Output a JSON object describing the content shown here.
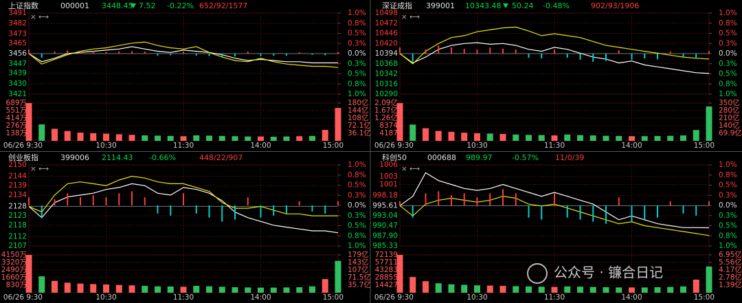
{
  "chart_data": [
    {
      "type": "line",
      "title": "上证指数",
      "code": "000001",
      "price": "3448.45",
      "change": "7.52",
      "change_pct": "-0.22%",
      "breadth": "652/92/1577",
      "x": [
        0,
        10,
        20,
        30,
        40,
        50,
        60,
        70,
        80,
        90,
        100,
        110,
        120,
        130,
        140,
        150,
        160,
        170,
        180,
        190,
        200,
        210,
        220,
        230,
        240
      ],
      "xlim": [
        0,
        240
      ],
      "xticks": [
        {
          "value": 0,
          "label": "06/26 9:30"
        },
        {
          "value": 60,
          "label": "10:30"
        },
        {
          "value": 120,
          "label": "11:30"
        },
        {
          "value": 180,
          "label": "14:00"
        },
        {
          "value": 240,
          "label": "15:00"
        }
      ],
      "ylim": [
        3421,
        3491
      ],
      "yticks": [
        3491,
        3482,
        3473,
        3465,
        3456,
        3447,
        3439,
        3430,
        3421
      ],
      "y2lim": [
        -1,
        1
      ],
      "y2ticks": [
        {
          "value": 1,
          "label": "1.0%"
        },
        {
          "value": 0.75,
          "label": "0.8%"
        },
        {
          "value": 0.5,
          "label": "0.5%"
        },
        {
          "value": 0.25,
          "label": "0.3%"
        },
        {
          "value": 0,
          "label": "0.0%"
        },
        {
          "value": -0.25,
          "label": "0.3%"
        },
        {
          "value": -0.5,
          "label": "0.5%"
        },
        {
          "value": -0.75,
          "label": "0.8%"
        },
        {
          "value": -1,
          "label": "1.0%"
        }
      ],
      "series": [
        {
          "color": "#ffffff",
          "values": [
            3456,
            3449,
            3452,
            3456,
            3457,
            3458,
            3459,
            3460,
            3462,
            3460,
            3458,
            3457,
            3459,
            3458,
            3457,
            3455,
            3452,
            3450,
            3451,
            3450,
            3449,
            3449,
            3448,
            3448,
            3448
          ]
        },
        {
          "color": "#e8e800",
          "values": [
            3456,
            3447,
            3451,
            3455,
            3458,
            3460,
            3461,
            3463,
            3465,
            3466,
            3463,
            3461,
            3460,
            3462,
            3457,
            3453,
            3450,
            3449,
            3452,
            3449,
            3447,
            3446,
            3445,
            3445,
            3444
          ]
        },
        {
          "axis": "y2",
          "type": "bar",
          "values": [
            0.1,
            -0.1,
            0.05,
            0.08,
            0.05,
            0.06,
            0.04,
            0.05,
            0.06,
            0.05,
            -0.05,
            -0.04,
            0.05,
            -0.05,
            -0.06,
            -0.08,
            -0.07,
            0.05,
            -0.06,
            -0.05,
            -0.05,
            0.03,
            -0.03,
            -0.04,
            0.04
          ]
        }
      ],
      "volume": {
        "ylim": [
          0,
          689
        ],
        "yticks": [
          {
            "value": 689,
            "label": "689万"
          },
          {
            "value": 551,
            "label": "551万"
          },
          {
            "value": 414,
            "label": "414万"
          },
          {
            "value": 276,
            "label": "276万"
          },
          {
            "value": 138,
            "label": "138万"
          }
        ],
        "y2lim": [
          0,
          180
        ],
        "y2ticks": [
          {
            "value": 180,
            "label": "180亿"
          },
          {
            "value": 144,
            "label": "144亿"
          },
          {
            "value": 108,
            "label": "108亿"
          },
          {
            "value": 72.1,
            "label": "72.1亿"
          },
          {
            "value": 36.1,
            "label": "36.1亿"
          }
        ],
        "values": [
          689,
          300,
          220,
          180,
          150,
          140,
          130,
          120,
          110,
          100,
          95,
          90,
          85,
          100,
          95,
          90,
          85,
          80,
          80,
          75,
          80,
          85,
          90,
          200,
          600
        ]
      }
    },
    {
      "type": "line",
      "title": "深证成指",
      "code": "399001",
      "price": "10343.48",
      "change": "50.24",
      "change_pct": "-0.48%",
      "breadth": "902/93/1906",
      "x": [
        0,
        10,
        20,
        30,
        40,
        50,
        60,
        70,
        80,
        90,
        100,
        110,
        120,
        130,
        140,
        150,
        160,
        170,
        180,
        190,
        200,
        210,
        220,
        230,
        240
      ],
      "xlim": [
        0,
        240
      ],
      "xticks": [
        {
          "value": 0,
          "label": "06/26 9:30"
        },
        {
          "value": 60,
          "label": "10:30"
        },
        {
          "value": 120,
          "label": "11:30"
        },
        {
          "value": 180,
          "label": "14:00"
        },
        {
          "value": 240,
          "label": "15:00"
        }
      ],
      "ylim": [
        10290,
        10498
      ],
      "yticks": [
        10498,
        10472,
        10446,
        10420,
        10394,
        10368,
        10342,
        10316,
        10290
      ],
      "y2lim": [
        -1,
        1
      ],
      "y2ticks": [
        {
          "value": 1,
          "label": "1.0%"
        },
        {
          "value": 0.75,
          "label": "0.8%"
        },
        {
          "value": 0.5,
          "label": "0.5%"
        },
        {
          "value": 0.25,
          "label": "0.3%"
        },
        {
          "value": 0,
          "label": "0.0%"
        },
        {
          "value": -0.25,
          "label": "0.3%"
        },
        {
          "value": -0.5,
          "label": "0.5%"
        },
        {
          "value": -0.75,
          "label": "0.8%"
        },
        {
          "value": -1,
          "label": "1.0%"
        }
      ],
      "series": [
        {
          "color": "#ffffff",
          "values": [
            10394,
            10370,
            10385,
            10405,
            10415,
            10420,
            10422,
            10418,
            10420,
            10415,
            10405,
            10400,
            10410,
            10405,
            10395,
            10385,
            10380,
            10370,
            10375,
            10365,
            10360,
            10355,
            10350,
            10345,
            10343
          ]
        },
        {
          "color": "#e8e800",
          "values": [
            10394,
            10368,
            10400,
            10420,
            10435,
            10440,
            10450,
            10455,
            10460,
            10462,
            10452,
            10440,
            10445,
            10440,
            10435,
            10425,
            10415,
            10410,
            10405,
            10400,
            10395,
            10390,
            10385,
            10382,
            10380
          ]
        },
        {
          "axis": "y2",
          "type": "bar",
          "values": [
            0.15,
            -0.2,
            0.1,
            0.2,
            0.15,
            0.12,
            0.1,
            0.15,
            0.12,
            0.1,
            -0.1,
            -0.12,
            0.1,
            -0.1,
            -0.15,
            -0.2,
            -0.18,
            0.08,
            -0.15,
            -0.12,
            -0.14,
            0.05,
            -0.1,
            -0.12,
            0.06
          ]
        }
      ],
      "volume": {
        "ylim": [
          0,
          20900
        ],
        "yticks": [
          {
            "value": 20900,
            "label": "2.09亿"
          },
          {
            "value": 16700,
            "label": "1.67亿"
          },
          {
            "value": 12600,
            "label": "1.26亿"
          },
          8374,
          4187
        ],
        "y2lim": [
          0,
          350
        ],
        "y2ticks": [
          {
            "value": 350,
            "label": "350亿"
          },
          {
            "value": 280,
            "label": "280亿"
          },
          {
            "value": 210,
            "label": "210亿"
          },
          {
            "value": 140,
            "label": "140亿"
          },
          {
            "value": 69.9,
            "label": "69.9亿"
          }
        ],
        "values": [
          20900,
          9000,
          7000,
          5500,
          5000,
          4500,
          4200,
          4000,
          3800,
          3500,
          3300,
          3200,
          3000,
          3500,
          3200,
          3000,
          2800,
          2700,
          2600,
          2600,
          2700,
          2800,
          3000,
          6000,
          19000
        ]
      }
    },
    {
      "type": "line",
      "title": "创业板指",
      "code": "399006",
      "price": "2114.43",
      "change_pct": "-0.66%",
      "breadth": "448/22/907",
      "x": [
        0,
        10,
        20,
        30,
        40,
        50,
        60,
        70,
        80,
        90,
        100,
        110,
        120,
        130,
        140,
        150,
        160,
        170,
        180,
        190,
        200,
        210,
        220,
        230,
        240
      ],
      "xlim": [
        0,
        240
      ],
      "xticks": [
        {
          "value": 0,
          "label": "06/26 9:30"
        },
        {
          "value": 60,
          "label": "10:30"
        },
        {
          "value": 120,
          "label": "11:30"
        },
        {
          "value": 180,
          "label": "14:00"
        },
        {
          "value": 240,
          "label": "15:00"
        }
      ],
      "ylim": [
        2107,
        2150
      ],
      "yticks": [
        2150,
        2144,
        2139,
        2134,
        2128,
        2123,
        2118,
        2112,
        2107
      ],
      "y2lim": [
        -1,
        1
      ],
      "y2ticks": [
        {
          "value": 1,
          "label": "1.0%"
        },
        {
          "value": 0.75,
          "label": "0.8%"
        },
        {
          "value": 0.5,
          "label": "0.5%"
        },
        {
          "value": 0.25,
          "label": "0.3%"
        },
        {
          "value": 0,
          "label": "0.0%"
        },
        {
          "value": -0.25,
          "label": "0.3%"
        },
        {
          "value": -0.5,
          "label": "0.5%"
        },
        {
          "value": -0.75,
          "label": "0.8%"
        },
        {
          "value": -1,
          "label": "1.0%"
        }
      ],
      "series": [
        {
          "color": "#ffffff",
          "values": [
            2128,
            2122,
            2130,
            2133,
            2134,
            2135,
            2137,
            2138,
            2140,
            2139,
            2135,
            2134,
            2138,
            2137,
            2135,
            2131,
            2125,
            2122,
            2120,
            2118,
            2117,
            2116,
            2115,
            2115,
            2114
          ]
        },
        {
          "color": "#e8e800",
          "values": [
            2128,
            2125,
            2134,
            2140,
            2141,
            2140,
            2139,
            2142,
            2144,
            2143,
            2141,
            2140,
            2140,
            2138,
            2136,
            2130,
            2127,
            2127,
            2128,
            2126,
            2124,
            2124,
            2123,
            2123,
            2123
          ]
        },
        {
          "axis": "y2",
          "type": "bar",
          "values": [
            0.2,
            -0.3,
            0.15,
            0.3,
            0.2,
            0.25,
            0.2,
            0.3,
            0.35,
            0.2,
            -0.2,
            -0.25,
            0.3,
            -0.2,
            -0.3,
            -0.4,
            -0.35,
            0.2,
            -0.3,
            -0.25,
            -0.2,
            0.1,
            -0.15,
            -0.2,
            0.1
          ]
        }
      ],
      "volume": {
        "ylim": [
          0,
          4150
        ],
        "yticks": [
          {
            "value": 4150,
            "label": "4150万"
          },
          {
            "value": 3320,
            "label": "3320万"
          },
          {
            "value": 2490,
            "label": "2490万"
          },
          {
            "value": 1660,
            "label": "1660万"
          },
          {
            "value": 830,
            "label": "830万"
          }
        ],
        "y2lim": [
          0,
          179
        ],
        "y2ticks": [
          {
            "value": 179,
            "label": "179亿"
          },
          {
            "value": 143,
            "label": "143亿"
          },
          {
            "value": 107,
            "label": "107亿"
          },
          {
            "value": 71.5,
            "label": "71.5亿"
          },
          {
            "value": 35.7,
            "label": "35.7亿"
          }
        ],
        "values": [
          4150,
          1800,
          1300,
          1100,
          1000,
          950,
          900,
          850,
          800,
          750,
          700,
          680,
          650,
          750,
          700,
          650,
          600,
          580,
          560,
          560,
          580,
          600,
          700,
          1500,
          3500
        ]
      }
    },
    {
      "type": "line",
      "title": "科创50",
      "code": "000688",
      "price": "989.97",
      "change_pct": "-0.57%",
      "breadth": "11/0/39",
      "x": [
        0,
        10,
        20,
        30,
        40,
        50,
        60,
        70,
        80,
        90,
        100,
        110,
        120,
        130,
        140,
        150,
        160,
        170,
        180,
        190,
        200,
        210,
        220,
        230,
        240
      ],
      "xlim": [
        0,
        240
      ],
      "xticks": [
        {
          "value": 0,
          "label": "06/26 9:30"
        },
        {
          "value": 60,
          "label": "10:30"
        },
        {
          "value": 120,
          "label": "11:30"
        },
        {
          "value": 180,
          "label": "14:00"
        },
        {
          "value": 240,
          "label": "15:00"
        }
      ],
      "ylim": [
        985.33,
        1006
      ],
      "yticks": [
        1006,
        1003,
        1001,
        998.18,
        995.61,
        993.04,
        990.47,
        {
          "value": 987.9,
          "label": "987.90"
        },
        985.33
      ],
      "y2lim": [
        -1,
        1
      ],
      "y2ticks": [
        {
          "value": 1,
          "label": "1.0%"
        },
        {
          "value": 0.75,
          "label": "0.8%"
        },
        {
          "value": 0.5,
          "label": "0.5%"
        },
        {
          "value": 0.25,
          "label": "0.3%"
        },
        {
          "value": 0,
          "label": "0.0%"
        },
        {
          "value": -0.25,
          "label": "0.3%"
        },
        {
          "value": -0.5,
          "label": "0.5%"
        },
        {
          "value": -0.75,
          "label": "0.8%"
        },
        {
          "value": -1,
          "label": "1.0%"
        }
      ],
      "series": [
        {
          "color": "#ffffff",
          "values": [
            995.61,
            998,
            1004,
            1002,
            1001,
            1000,
            999.5,
            1000,
            1001,
            1000,
            999,
            998,
            999,
            998,
            997,
            996,
            994,
            992,
            993,
            992,
            991,
            990.5,
            990,
            990,
            989.97
          ]
        },
        {
          "color": "#e8e800",
          "values": [
            995.61,
            993,
            996,
            997,
            997.5,
            997,
            996.5,
            997,
            998,
            997.5,
            996,
            995.5,
            996,
            995,
            994,
            993,
            992,
            991,
            991.5,
            990.5,
            990,
            989.5,
            989,
            988.5,
            988
          ]
        },
        {
          "axis": "y2",
          "type": "bar",
          "values": [
            0.1,
            -0.3,
            0.3,
            0.35,
            0.25,
            0.3,
            0.2,
            0.3,
            0.4,
            0.3,
            -0.3,
            -0.35,
            0.3,
            -0.3,
            -0.35,
            -0.4,
            -0.45,
            0.2,
            -0.4,
            -0.35,
            -0.3,
            0.1,
            -0.2,
            -0.25,
            0.1
          ]
        }
      ],
      "volume": {
        "ylim": [
          0,
          72139
        ],
        "yticks": [
          72139,
          57711,
          43283,
          28855,
          14427
        ],
        "y2lim": [
          0,
          6.95
        ],
        "y2ticks": [
          {
            "value": 6.95,
            "label": "6.95亿"
          },
          {
            "value": 5.56,
            "label": "5.56亿"
          },
          {
            "value": 4.17,
            "label": "4.17亿"
          },
          {
            "value": 2.78,
            "label": "2.78亿"
          },
          {
            "value": 1.39,
            "label": "1.39亿"
          }
        ],
        "values": [
          72139,
          30000,
          22000,
          18000,
          16000,
          15000,
          14000,
          13500,
          13000,
          12500,
          12000,
          11500,
          11000,
          12000,
          11500,
          11000,
          10500,
          10000,
          10000,
          10000,
          10500,
          11000,
          12000,
          25000,
          50000
        ]
      }
    }
  ],
  "watermark": "公众号 · 镰合日记"
}
